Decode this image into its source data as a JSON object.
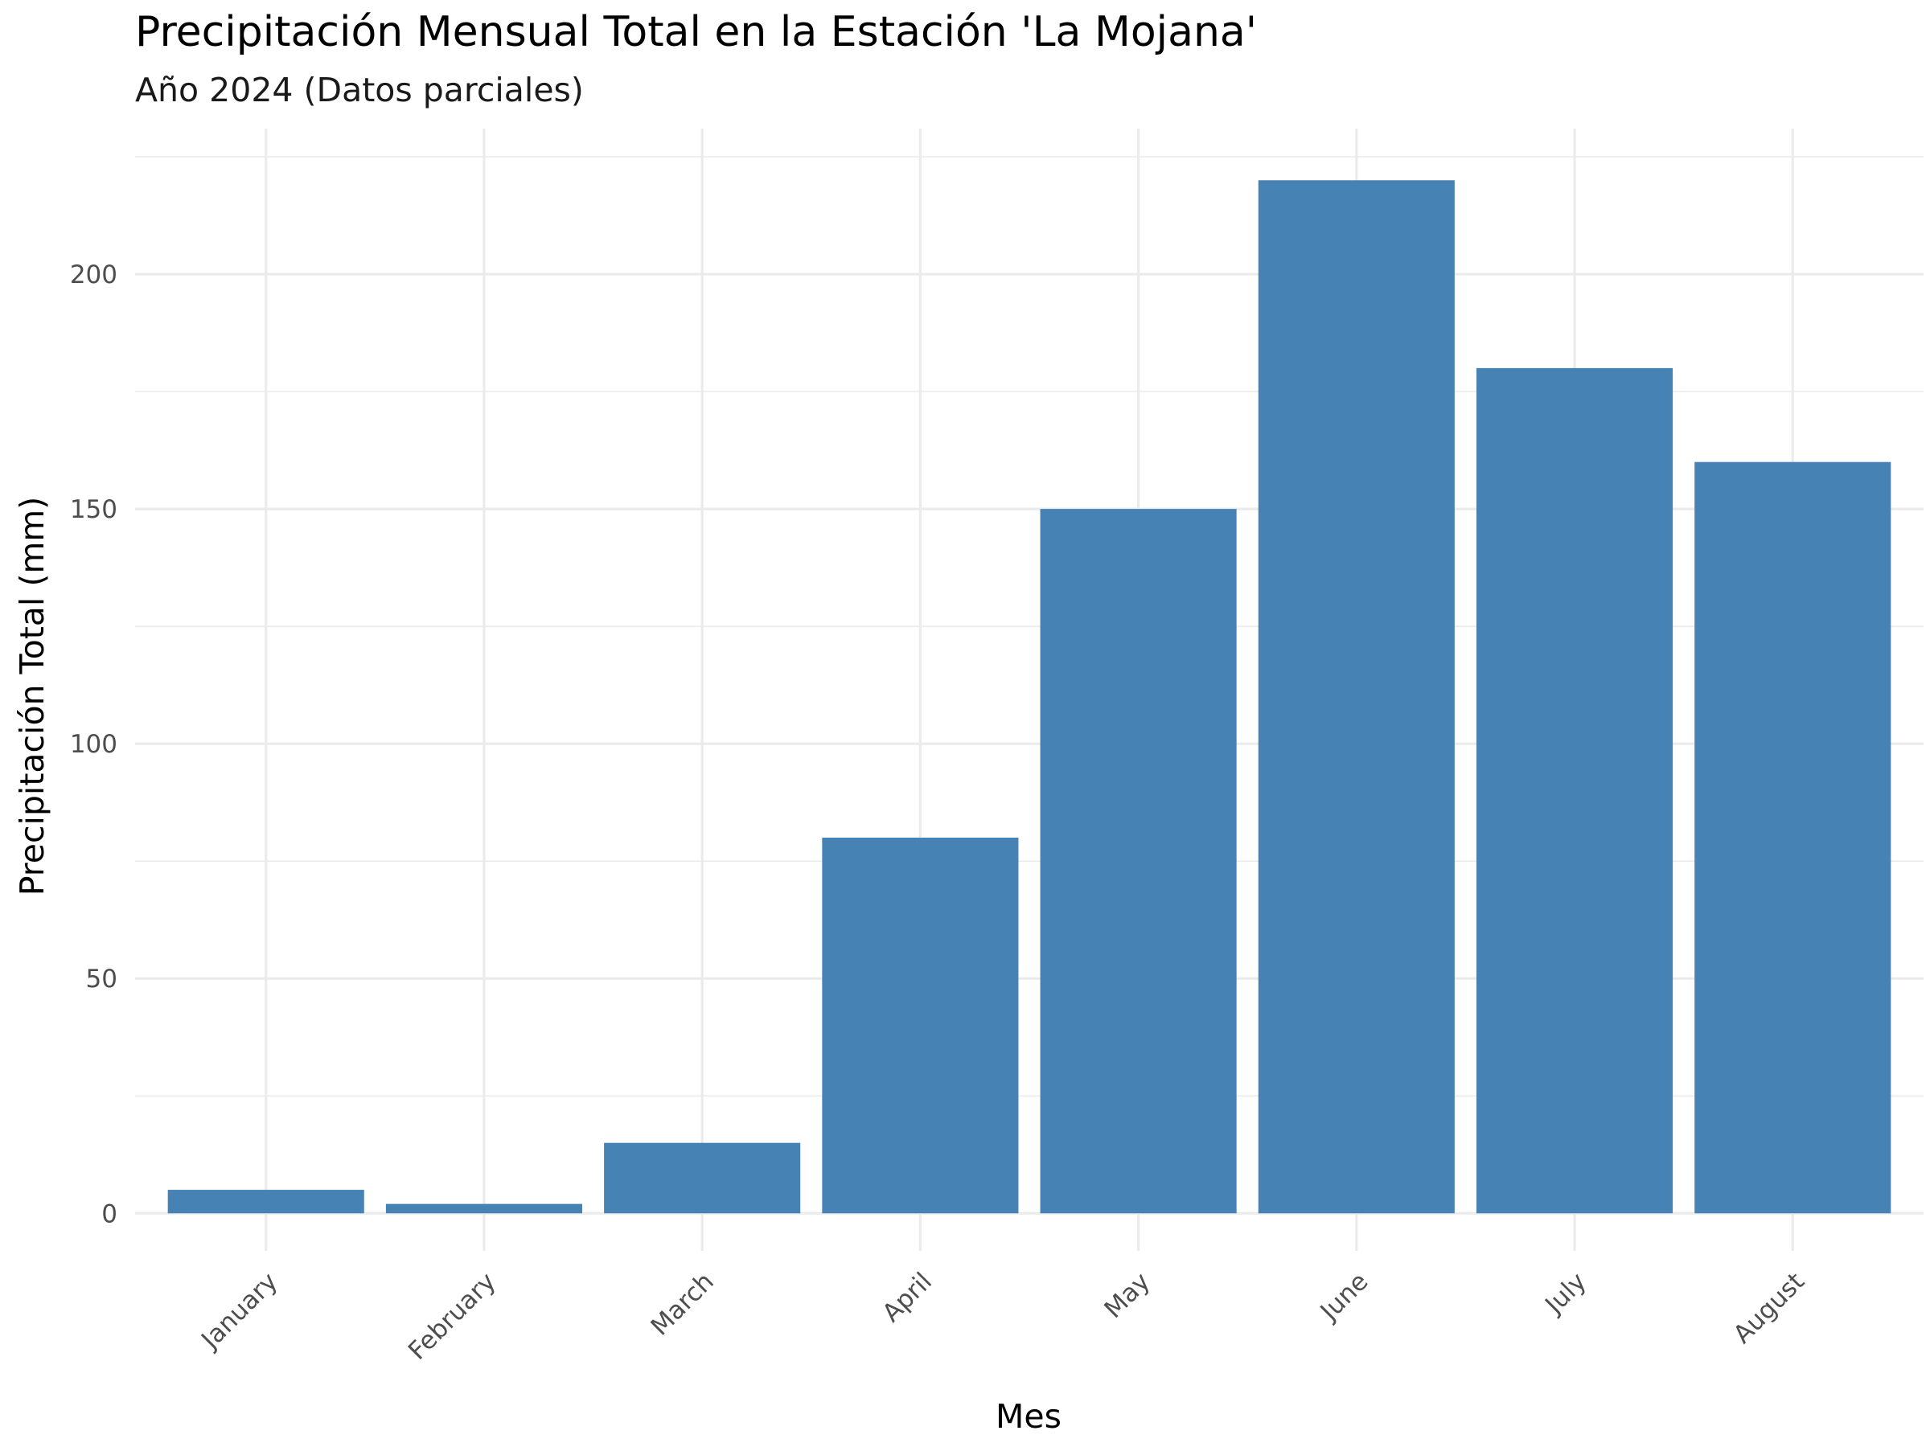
{
  "chart_data": {
    "type": "bar",
    "title": "Precipitación Mensual Total en la Estación 'La Mojana'",
    "subtitle": "Año 2024 (Datos parciales)",
    "xlabel": "Mes",
    "ylabel": "Precipitación Total (mm)",
    "categories": [
      "January",
      "February",
      "March",
      "April",
      "May",
      "June",
      "July",
      "August"
    ],
    "values": [
      5,
      2,
      15,
      80,
      150,
      220,
      180,
      160
    ],
    "ylim": [
      -8,
      231
    ],
    "yticks": [
      0,
      50,
      100,
      150,
      200
    ],
    "grid": true,
    "legend": "none",
    "colors": {
      "bar": "#4682B4",
      "grid": "#EBEBEB",
      "background": "#FFFFFF"
    }
  }
}
